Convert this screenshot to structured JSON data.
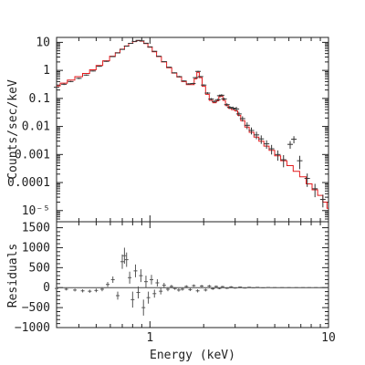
{
  "chart_data": [
    {
      "type": "scatter",
      "panel": "spectrum",
      "xlabel": "",
      "ylabel": "Counts/sec/keV",
      "xscale": "log",
      "yscale": "log",
      "xlim": [
        0.3,
        10
      ],
      "ylim": [
        4e-06,
        15
      ],
      "yticks": [
        {
          "value": 10,
          "label": "10"
        },
        {
          "value": 1,
          "label": "1"
        },
        {
          "value": 0.1,
          "label": "0.1"
        },
        {
          "value": 0.01,
          "label": "0.01"
        },
        {
          "value": 0.001,
          "label": "0.001"
        },
        {
          "value": 0.0001,
          "label": "0.0001"
        },
        {
          "value": 1e-05,
          "label": "10⁻⁵"
        }
      ],
      "colors": {
        "data": "#333333",
        "model": "#e31a1c"
      },
      "series": [
        {
          "role": "data",
          "x": [
            0.3,
            0.33,
            0.36,
            0.4,
            0.44,
            0.48,
            0.52,
            0.57,
            0.62,
            0.66,
            0.7,
            0.74,
            0.78,
            0.82,
            0.86,
            0.9,
            0.95,
            1.0,
            1.06,
            1.12,
            1.2,
            1.28,
            1.37,
            1.46,
            1.55,
            1.65,
            1.74,
            1.8,
            1.86,
            1.92,
            2.0,
            2.1,
            2.2,
            2.3,
            2.4,
            2.46,
            2.52,
            2.6,
            2.7,
            2.8,
            2.92,
            3.05,
            3.15,
            3.3,
            3.5,
            3.7,
            3.95,
            4.2,
            4.5,
            4.8,
            5.2,
            5.6,
            6.1,
            6.4,
            6.9,
            7.6,
            8.4,
            9.3
          ],
          "y": [
            0.25,
            0.32,
            0.4,
            0.52,
            0.68,
            0.95,
            1.4,
            2.1,
            3.1,
            4.2,
            5.6,
            7.3,
            9.2,
            10.8,
            11.8,
            11.3,
            9.3,
            6.9,
            4.8,
            3.2,
            2.05,
            1.3,
            0.82,
            0.6,
            0.42,
            0.33,
            0.34,
            0.55,
            0.92,
            0.6,
            0.3,
            0.155,
            0.095,
            0.078,
            0.09,
            0.125,
            0.13,
            0.096,
            0.06,
            0.048,
            0.045,
            0.042,
            0.028,
            0.019,
            0.011,
            0.0072,
            0.005,
            0.0036,
            0.0024,
            0.0016,
            0.001,
            0.00065,
            0.0023,
            0.0035,
            0.0006,
            0.00014,
            6e-05,
            2.5e-05
          ],
          "yerr": [
            0.02,
            0.02,
            0.02,
            0.03,
            0.03,
            0.04,
            0.05,
            0.07,
            0.1,
            0.1,
            0.15,
            0.2,
            0.2,
            0.25,
            0.25,
            0.25,
            0.2,
            0.15,
            0.12,
            0.1,
            0.06,
            0.04,
            0.03,
            0.03,
            0.02,
            0.02,
            0.02,
            0.03,
            0.05,
            0.03,
            0.02,
            0.012,
            0.009,
            0.008,
            0.008,
            0.012,
            0.012,
            0.01,
            0.007,
            0.006,
            0.006,
            0.008,
            0.005,
            0.004,
            0.003,
            0.002,
            0.0015,
            0.0012,
            0.0008,
            0.0006,
            0.0004,
            0.0003,
            0.0007,
            0.001,
            0.0003,
            7e-05,
            3e-05,
            1.2e-05
          ]
        },
        {
          "role": "model",
          "x": [
            0.3,
            0.33,
            0.36,
            0.4,
            0.44,
            0.48,
            0.52,
            0.57,
            0.62,
            0.66,
            0.7,
            0.74,
            0.78,
            0.82,
            0.86,
            0.9,
            0.95,
            1.0,
            1.06,
            1.12,
            1.2,
            1.28,
            1.37,
            1.46,
            1.55,
            1.65,
            1.74,
            1.8,
            1.86,
            1.92,
            2.0,
            2.1,
            2.2,
            2.3,
            2.4,
            2.46,
            2.52,
            2.6,
            2.7,
            2.8,
            2.92,
            3.05,
            3.15,
            3.3,
            3.5,
            3.7,
            3.95,
            4.2,
            4.5,
            4.8,
            5.2,
            5.6,
            6.1,
            6.6,
            7.2,
            7.8,
            8.4,
            9.0,
            9.6,
            10.0
          ],
          "y": [
            0.28,
            0.35,
            0.45,
            0.6,
            0.78,
            1.05,
            1.5,
            2.2,
            3.2,
            4.3,
            5.7,
            7.4,
            9.2,
            10.6,
            11.5,
            11.0,
            9.0,
            6.7,
            4.6,
            3.1,
            2.0,
            1.25,
            0.8,
            0.58,
            0.4,
            0.31,
            0.31,
            0.5,
            0.85,
            0.55,
            0.27,
            0.14,
            0.085,
            0.07,
            0.082,
            0.115,
            0.12,
            0.085,
            0.055,
            0.044,
            0.04,
            0.036,
            0.025,
            0.016,
            0.0095,
            0.0062,
            0.0042,
            0.003,
            0.002,
            0.0014,
            0.0009,
            0.0006,
            0.0004,
            0.00025,
            0.00016,
            9e-05,
            5.5e-05,
            3.5e-05,
            2e-05,
            1.2e-05
          ]
        }
      ]
    },
    {
      "type": "scatter",
      "panel": "residuals",
      "xlabel": "Energy (keV)",
      "ylabel": "Residuals",
      "xscale": "log",
      "xlim": [
        0.3,
        10
      ],
      "ylim": [
        -1000,
        1650
      ],
      "xticks": [
        {
          "value": 1,
          "label": "1"
        },
        {
          "value": 10,
          "label": "10"
        }
      ],
      "yticks": [
        {
          "value": 1500,
          "label": "1500"
        },
        {
          "value": 1000,
          "label": "1000"
        },
        {
          "value": 500,
          "label": "500"
        },
        {
          "value": 0,
          "label": "0"
        },
        {
          "value": -500,
          "label": "−500"
        },
        {
          "value": -1000,
          "label": "−1000"
        }
      ],
      "zero_line": 0,
      "series": [
        {
          "role": "residuals",
          "x": [
            0.3,
            0.34,
            0.38,
            0.42,
            0.46,
            0.5,
            0.54,
            0.58,
            0.62,
            0.66,
            0.7,
            0.72,
            0.74,
            0.77,
            0.8,
            0.83,
            0.86,
            0.89,
            0.92,
            0.95,
            0.98,
            1.02,
            1.06,
            1.1,
            1.15,
            1.2,
            1.26,
            1.32,
            1.38,
            1.45,
            1.52,
            1.6,
            1.68,
            1.76,
            1.85,
            1.95,
            2.05,
            2.15,
            2.25,
            2.35,
            2.45,
            2.55,
            2.7,
            2.85,
            3.0,
            3.2,
            3.4,
            3.6,
            3.8,
            4.0,
            4.3,
            4.6,
            5.0,
            5.5,
            6.0,
            6.6,
            7.2,
            7.8,
            8.5,
            9.2,
            9.8
          ],
          "y": [
            -20,
            -40,
            -60,
            -80,
            -90,
            -70,
            -40,
            80,
            200,
            -200,
            650,
            800,
            700,
            250,
            -300,
            420,
            -120,
            300,
            -500,
            150,
            -250,
            200,
            -150,
            120,
            -90,
            60,
            -40,
            30,
            -20,
            -60,
            -40,
            30,
            -50,
            50,
            -80,
            40,
            -60,
            40,
            -30,
            30,
            -20,
            25,
            -15,
            20,
            -10,
            15,
            -10,
            10,
            -5,
            8,
            -5,
            5,
            0,
            0,
            0,
            0,
            0,
            0,
            0,
            0,
            0
          ],
          "yerr": [
            30,
            30,
            35,
            40,
            40,
            45,
            50,
            60,
            80,
            100,
            180,
            200,
            180,
            150,
            200,
            160,
            150,
            160,
            200,
            150,
            150,
            120,
            100,
            90,
            80,
            60,
            50,
            40,
            35,
            40,
            35,
            30,
            35,
            30,
            40,
            30,
            35,
            30,
            25,
            25,
            20,
            20,
            18,
            16,
            14,
            12,
            10,
            9,
            8,
            7,
            6,
            5,
            4,
            3,
            3,
            2,
            2,
            2,
            2,
            2,
            2
          ]
        }
      ]
    }
  ]
}
